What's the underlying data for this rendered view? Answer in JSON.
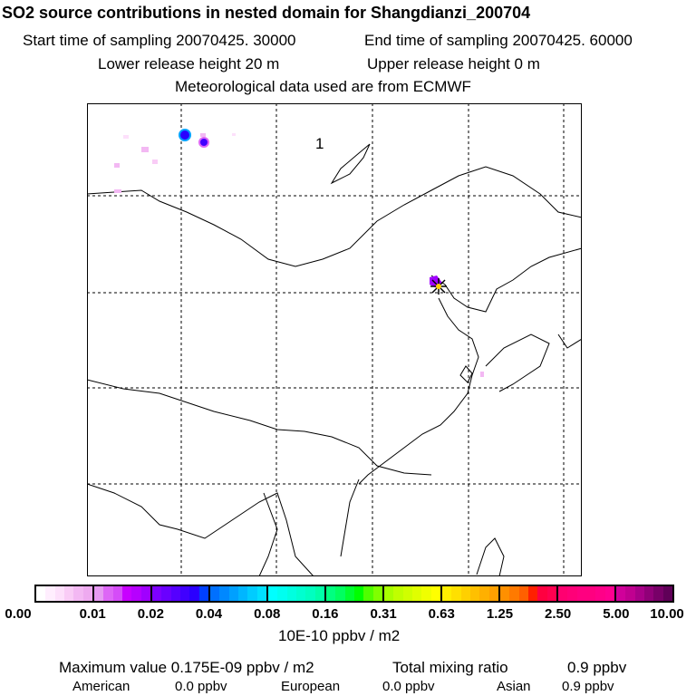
{
  "header": {
    "title": "SO2 source contributions in nested domain for Shangdianzi_200704",
    "start_label": "Start time of sampling 20070425. 30000",
    "end_label": "End time of sampling 20070425. 60000",
    "lower_label": "Lower release height   20 m",
    "upper_label": "Upper release height    0 m",
    "met_label": "Meteorological data used are from ECMWF"
  },
  "map": {
    "panel_number": "1",
    "station_marker": "star-icon"
  },
  "colorbar": {
    "ticks": [
      "0.00",
      "0.01",
      "0.02",
      "0.04",
      "0.08",
      "0.16",
      "0.31",
      "0.63",
      "1.25",
      "2.50",
      "5.00",
      "10.00"
    ],
    "units": "10E-10 ppbv / m2",
    "segments": [
      [
        "#ffffff",
        "#ffeefe",
        "#fde0fb",
        "#f9ccf6",
        "#f3b8f3",
        "#eeaaf0"
      ],
      [
        "#e69af2",
        "#dd66f6",
        "#d54cf8",
        "#c800ff",
        "#b600ff",
        "#a000ff"
      ],
      [
        "#7e00ff",
        "#6a00ff",
        "#5500ff",
        "#4000ff",
        "#2a00ff",
        "#0040ff"
      ],
      [
        "#0070ff",
        "#0088ff",
        "#00a0ff",
        "#00b6ff",
        "#00ccff",
        "#00e0ff"
      ],
      [
        "#00ffff",
        "#00fff0",
        "#00ffe0",
        "#00ffd0",
        "#00ffc0",
        "#00ffa8"
      ],
      [
        "#00ff80",
        "#00ff60",
        "#00ff30",
        "#00ff00",
        "#50ff00",
        "#80ff00"
      ],
      [
        "#a8ff00",
        "#c0ff00",
        "#d0ff00",
        "#e0ff00",
        "#f0ff00",
        "#ffff00"
      ],
      [
        "#ffee00",
        "#ffe000",
        "#ffd000",
        "#ffc000",
        "#ffb000",
        "#ffa000"
      ],
      [
        "#ff9000",
        "#ff7a00",
        "#ff6000",
        "#ff2000",
        "#ff0040",
        "#ff0050"
      ],
      [
        "#ff0070",
        "#ff0078",
        "#ff0080",
        "#ff0080",
        "#ff0088",
        "#ff0090"
      ],
      [
        "#d0009a",
        "#c00090",
        "#a80088",
        "#900078",
        "#780068",
        "#600058"
      ]
    ]
  },
  "footer": {
    "max_label": "Maximum value  0.175E-09 ppbv / m2",
    "total_label": "Total mixing ratio",
    "total_value": "0.9 ppbv",
    "american_label": "American",
    "american_value": "0.0 ppbv",
    "european_label": "European",
    "european_value": "0.0 ppbv",
    "asian_label": "Asian",
    "asian_value": "0.9 ppbv"
  }
}
